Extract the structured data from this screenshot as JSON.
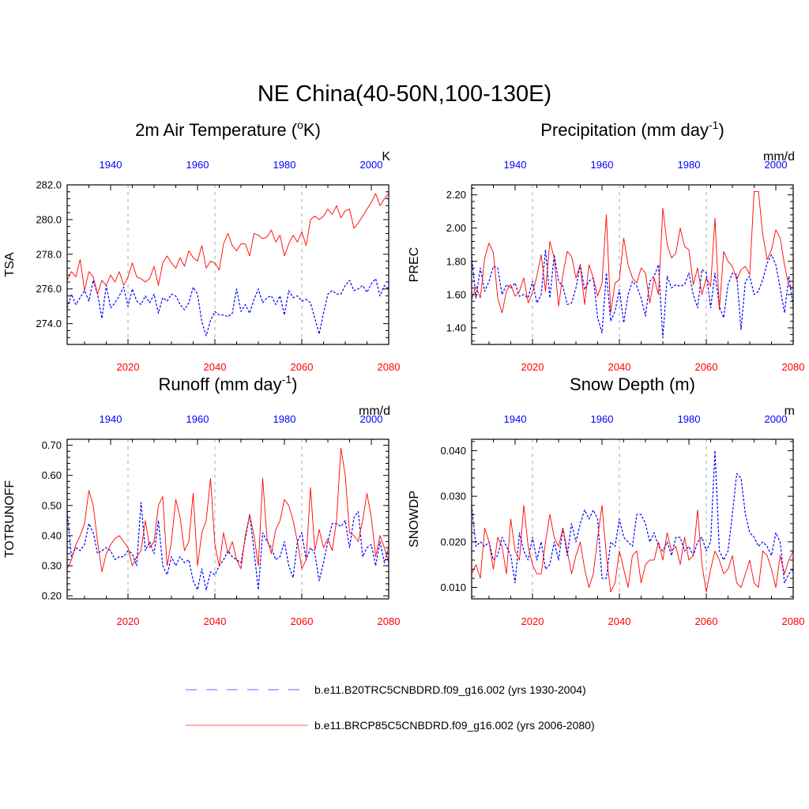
{
  "figure": {
    "title": "NE China(40-50N,100-130E)",
    "legend": [
      {
        "label": "b.e11.B20TRC5CNBDRD.f09_g16.002 (yrs 1930-2004)",
        "color": "#0000ff",
        "style": "dashed"
      },
      {
        "label": "b.e11.BRCP85C5CNBDRD.f09_g16.002 (yrs 2006-2080)",
        "color": "#ff0000",
        "style": "solid"
      }
    ],
    "colors": {
      "historical": "#0000ff",
      "future": "#ff0000",
      "axis": "#000000",
      "grid": "#aaaaaa"
    }
  },
  "chart_data": [
    {
      "type": "line",
      "title_main": "2m Air Temperature (",
      "title_sup": "o",
      "title_end": "K)",
      "ylabel": "TSA",
      "units": "K",
      "ylim": [
        272.8,
        282.0
      ],
      "yticks": [
        274.0,
        276.0,
        278.0,
        280.0,
        282.0
      ],
      "ytick_labels": [
        "274.0",
        "276.0",
        "278.0",
        "280.0",
        "282.0"
      ],
      "x_bottom": {
        "range": [
          2006,
          2080
        ],
        "ticks": [
          2020,
          2040,
          2060,
          2080
        ],
        "color": "#ff0000"
      },
      "x_top": {
        "range": [
          1930,
          2004
        ],
        "ticks": [
          1940,
          1960,
          1980,
          2000
        ],
        "color": "#0000ff"
      },
      "series": [
        {
          "name": "b.e11.B20TRC5CNBDRD.f09_g16.002 (yrs 1930-2004)",
          "axis": "top",
          "style": "dashed",
          "color": "#0000ff",
          "values": [
            274.9,
            275.7,
            275.1,
            275.5,
            275.9,
            275.3,
            276.5,
            275.7,
            274.3,
            276.2,
            274.9,
            275.2,
            275.6,
            276.1,
            275.0,
            276.0,
            275.3,
            275.1,
            275.6,
            275.2,
            275.7,
            274.6,
            275.5,
            275.3,
            275.7,
            275.6,
            275.1,
            274.8,
            275.2,
            276.1,
            275.7,
            274.1,
            273.3,
            274.2,
            274.7,
            274.5,
            274.5,
            274.4,
            274.6,
            276.0,
            274.7,
            275.1,
            274.6,
            275.4,
            276.0,
            275.2,
            275.5,
            275.6,
            275.1,
            275.6,
            274.5,
            275.9,
            275.5,
            275.6,
            275.3,
            275.4,
            275.2,
            274.3,
            273.4,
            274.6,
            275.7,
            275.9,
            275.7,
            275.7,
            276.2,
            276.5,
            275.9,
            276.0,
            276.2,
            275.8,
            276.3,
            276.6,
            275.6,
            276.2,
            276.0
          ]
        },
        {
          "name": "b.e11.BRCP85C5CNBDRD.f09_g16.002 (yrs 2006-2080)",
          "axis": "bottom",
          "style": "solid",
          "color": "#ff0000",
          "values": [
            276.5,
            277.0,
            276.7,
            277.7,
            275.9,
            277.0,
            276.7,
            275.7,
            276.5,
            276.2,
            276.8,
            276.4,
            277.0,
            276.2,
            276.7,
            277.5,
            276.7,
            276.6,
            276.4,
            276.6,
            277.3,
            276.2,
            277.5,
            277.9,
            277.5,
            277.2,
            277.8,
            277.3,
            278.2,
            277.8,
            277.6,
            278.5,
            277.2,
            277.6,
            277.5,
            277.1,
            278.6,
            279.2,
            278.5,
            278.2,
            278.6,
            278.6,
            277.9,
            279.2,
            279.1,
            278.9,
            279.0,
            279.4,
            278.7,
            279.1,
            277.9,
            278.6,
            279.1,
            278.7,
            279.3,
            278.5,
            280.0,
            280.2,
            280.0,
            280.2,
            280.6,
            280.3,
            280.8,
            280.1,
            280.5,
            280.6,
            279.5,
            279.8,
            280.2,
            280.6,
            281.0,
            281.5,
            280.8,
            281.2,
            281.5
          ]
        }
      ]
    },
    {
      "type": "line",
      "title_main": "Precipitation (mm day",
      "title_sup": "-1",
      "title_end": ")",
      "ylabel": "PREC",
      "units": "mm/d",
      "ylim": [
        1.3,
        2.26
      ],
      "yticks": [
        1.4,
        1.6,
        1.8,
        2.0,
        2.2
      ],
      "ytick_labels": [
        "1.40",
        "1.60",
        "1.80",
        "2.00",
        "2.20"
      ],
      "x_bottom": {
        "range": [
          2006,
          2080
        ],
        "ticks": [
          2020,
          2040,
          2060,
          2080
        ],
        "color": "#ff0000"
      },
      "x_top": {
        "range": [
          1930,
          2004
        ],
        "ticks": [
          1940,
          1960,
          1980,
          2000
        ],
        "color": "#0000ff"
      },
      "series": [
        {
          "name": "b.e11.B20TRC5CNBDRD.f09_g16.002 (yrs 1930-2004)",
          "axis": "top",
          "style": "dashed",
          "color": "#0000ff",
          "values": [
            1.83,
            1.58,
            1.76,
            1.62,
            1.68,
            1.77,
            1.76,
            1.6,
            1.66,
            1.64,
            1.67,
            1.59,
            1.6,
            1.58,
            1.68,
            1.55,
            1.6,
            1.87,
            1.58,
            1.84,
            1.68,
            1.65,
            1.54,
            1.55,
            1.64,
            1.78,
            1.63,
            1.68,
            1.7,
            1.46,
            1.37,
            1.73,
            1.44,
            1.5,
            1.63,
            1.43,
            1.6,
            1.68,
            1.65,
            1.58,
            1.47,
            1.68,
            1.71,
            1.78,
            1.34,
            1.71,
            1.64,
            1.66,
            1.65,
            1.66,
            1.73,
            1.6,
            1.52,
            1.75,
            1.73,
            1.52,
            1.73,
            1.53,
            1.46,
            1.66,
            1.73,
            1.72,
            1.39,
            1.68,
            1.71,
            1.6,
            1.62,
            1.69,
            1.79,
            1.84,
            1.78,
            1.64,
            1.49,
            1.71,
            1.53
          ]
        },
        {
          "name": "b.e11.BRCP85C5CNBDRD.f09_g16.002 (yrs 2006-2080)",
          "axis": "bottom",
          "style": "solid",
          "color": "#ff0000",
          "values": [
            1.57,
            1.65,
            1.58,
            1.82,
            1.91,
            1.85,
            1.58,
            1.49,
            1.62,
            1.66,
            1.59,
            1.62,
            1.7,
            1.55,
            1.61,
            1.71,
            1.84,
            1.62,
            1.92,
            1.82,
            1.53,
            1.72,
            1.86,
            1.83,
            1.7,
            1.78,
            1.54,
            1.78,
            1.7,
            1.59,
            1.67,
            2.08,
            1.49,
            1.67,
            1.69,
            1.94,
            1.78,
            1.7,
            1.67,
            1.76,
            1.73,
            1.55,
            1.7,
            1.6,
            2.12,
            1.9,
            1.82,
            1.85,
            2.0,
            1.89,
            1.87,
            1.66,
            1.76,
            1.6,
            1.7,
            1.65,
            2.06,
            1.51,
            1.86,
            1.8,
            1.77,
            1.69,
            1.75,
            1.77,
            1.72,
            2.22,
            2.22,
            1.96,
            1.81,
            1.87,
            1.99,
            1.94,
            1.78,
            1.65,
            1.64
          ]
        }
      ]
    },
    {
      "type": "line",
      "title_main": "Runoff (mm day",
      "title_sup": "-1",
      "title_end": ")",
      "ylabel": "TOTRUNOFF",
      "units": "mm/d",
      "ylim": [
        0.19,
        0.72
      ],
      "yticks": [
        0.2,
        0.3,
        0.4,
        0.5,
        0.6,
        0.7
      ],
      "ytick_labels": [
        "0.20",
        "0.30",
        "0.40",
        "0.50",
        "0.60",
        "0.70"
      ],
      "x_bottom": {
        "range": [
          2006,
          2080
        ],
        "ticks": [
          2020,
          2040,
          2060,
          2080
        ],
        "color": "#ff0000"
      },
      "x_top": {
        "range": [
          1930,
          2004
        ],
        "ticks": [
          1940,
          1960,
          1980,
          2000
        ],
        "color": "#0000ff"
      },
      "series": [
        {
          "name": "b.e11.B20TRC5CNBDRD.f09_g16.002 (yrs 1930-2004)",
          "axis": "top",
          "style": "dashed",
          "color": "#0000ff",
          "values": [
            0.48,
            0.33,
            0.36,
            0.35,
            0.37,
            0.44,
            0.41,
            0.34,
            0.35,
            0.36,
            0.35,
            0.32,
            0.33,
            0.33,
            0.35,
            0.34,
            0.3,
            0.51,
            0.35,
            0.38,
            0.34,
            0.45,
            0.3,
            0.27,
            0.33,
            0.3,
            0.33,
            0.31,
            0.32,
            0.25,
            0.22,
            0.29,
            0.22,
            0.28,
            0.27,
            0.3,
            0.32,
            0.35,
            0.33,
            0.32,
            0.31,
            0.39,
            0.47,
            0.35,
            0.22,
            0.41,
            0.38,
            0.36,
            0.32,
            0.33,
            0.38,
            0.3,
            0.26,
            0.38,
            0.41,
            0.32,
            0.36,
            0.34,
            0.25,
            0.31,
            0.38,
            0.44,
            0.44,
            0.43,
            0.45,
            0.36,
            0.46,
            0.48,
            0.33,
            0.36,
            0.37,
            0.3,
            0.38,
            0.31,
            0.36
          ]
        },
        {
          "name": "b.e11.BRCP85C5CNBDRD.f09_g16.002 (yrs 2006-2080)",
          "axis": "bottom",
          "style": "solid",
          "color": "#ff0000",
          "values": [
            0.29,
            0.32,
            0.37,
            0.4,
            0.44,
            0.55,
            0.5,
            0.38,
            0.28,
            0.34,
            0.37,
            0.39,
            0.4,
            0.38,
            0.36,
            0.3,
            0.33,
            0.35,
            0.45,
            0.36,
            0.38,
            0.5,
            0.53,
            0.3,
            0.38,
            0.52,
            0.46,
            0.35,
            0.38,
            0.54,
            0.3,
            0.41,
            0.45,
            0.59,
            0.37,
            0.3,
            0.41,
            0.34,
            0.38,
            0.32,
            0.29,
            0.4,
            0.47,
            0.4,
            0.3,
            0.59,
            0.39,
            0.34,
            0.42,
            0.45,
            0.52,
            0.5,
            0.45,
            0.38,
            0.29,
            0.32,
            0.56,
            0.35,
            0.42,
            0.36,
            0.39,
            0.35,
            0.45,
            0.69,
            0.6,
            0.41,
            0.4,
            0.38,
            0.45,
            0.54,
            0.46,
            0.33,
            0.4,
            0.36,
            0.31
          ]
        }
      ]
    },
    {
      "type": "line",
      "title_main": "Snow Depth (m)",
      "title_sup": "",
      "title_end": "",
      "ylabel": "SNOWDP",
      "units": "m",
      "ylim": [
        0.0075,
        0.0425
      ],
      "yticks": [
        0.01,
        0.02,
        0.03,
        0.04
      ],
      "ytick_labels": [
        "0.010",
        "0.020",
        "0.030",
        "0.040"
      ],
      "x_bottom": {
        "range": [
          2006,
          2080
        ],
        "ticks": [
          2020,
          2040,
          2060,
          2080
        ],
        "color": "#ff0000"
      },
      "x_top": {
        "range": [
          1930,
          2004
        ],
        "ticks": [
          1940,
          1960,
          1980,
          2000
        ],
        "color": "#0000ff"
      },
      "series": [
        {
          "name": "b.e11.B20TRC5CNBDRD.f09_g16.002 (yrs 1930-2004)",
          "axis": "top",
          "style": "dashed",
          "color": "#0000ff",
          "values": [
            0.028,
            0.019,
            0.02,
            0.019,
            0.02,
            0.016,
            0.017,
            0.021,
            0.019,
            0.017,
            0.011,
            0.022,
            0.018,
            0.016,
            0.021,
            0.016,
            0.02,
            0.014,
            0.015,
            0.02,
            0.016,
            0.023,
            0.017,
            0.024,
            0.02,
            0.024,
            0.027,
            0.025,
            0.027,
            0.025,
            0.012,
            0.012,
            0.02,
            0.019,
            0.025,
            0.021,
            0.02,
            0.019,
            0.026,
            0.026,
            0.024,
            0.02,
            0.022,
            0.019,
            0.018,
            0.02,
            0.017,
            0.021,
            0.021,
            0.018,
            0.019,
            0.017,
            0.02,
            0.021,
            0.018,
            0.02,
            0.04,
            0.018,
            0.016,
            0.018,
            0.026,
            0.035,
            0.034,
            0.026,
            0.022,
            0.021,
            0.019,
            0.02,
            0.019,
            0.017,
            0.022,
            0.02,
            0.011,
            0.013,
            0.014
          ]
        },
        {
          "name": "b.e11.BRCP85C5CNBDRD.f09_g16.002 (yrs 2006-2080)",
          "axis": "bottom",
          "style": "solid",
          "color": "#ff0000",
          "values": [
            0.013,
            0.015,
            0.012,
            0.023,
            0.02,
            0.014,
            0.021,
            0.019,
            0.013,
            0.025,
            0.018,
            0.016,
            0.028,
            0.019,
            0.015,
            0.013,
            0.013,
            0.02,
            0.026,
            0.021,
            0.019,
            0.023,
            0.018,
            0.013,
            0.017,
            0.02,
            0.014,
            0.01,
            0.013,
            0.021,
            0.028,
            0.017,
            0.009,
            0.011,
            0.018,
            0.014,
            0.01,
            0.017,
            0.018,
            0.011,
            0.015,
            0.016,
            0.016,
            0.02,
            0.016,
            0.022,
            0.018,
            0.019,
            0.015,
            0.021,
            0.016,
            0.017,
            0.027,
            0.015,
            0.009,
            0.014,
            0.018,
            0.016,
            0.013,
            0.014,
            0.017,
            0.011,
            0.01,
            0.013,
            0.016,
            0.011,
            0.01,
            0.018,
            0.017,
            0.014,
            0.01,
            0.017,
            0.013,
            0.016,
            0.018
          ]
        }
      ]
    }
  ]
}
